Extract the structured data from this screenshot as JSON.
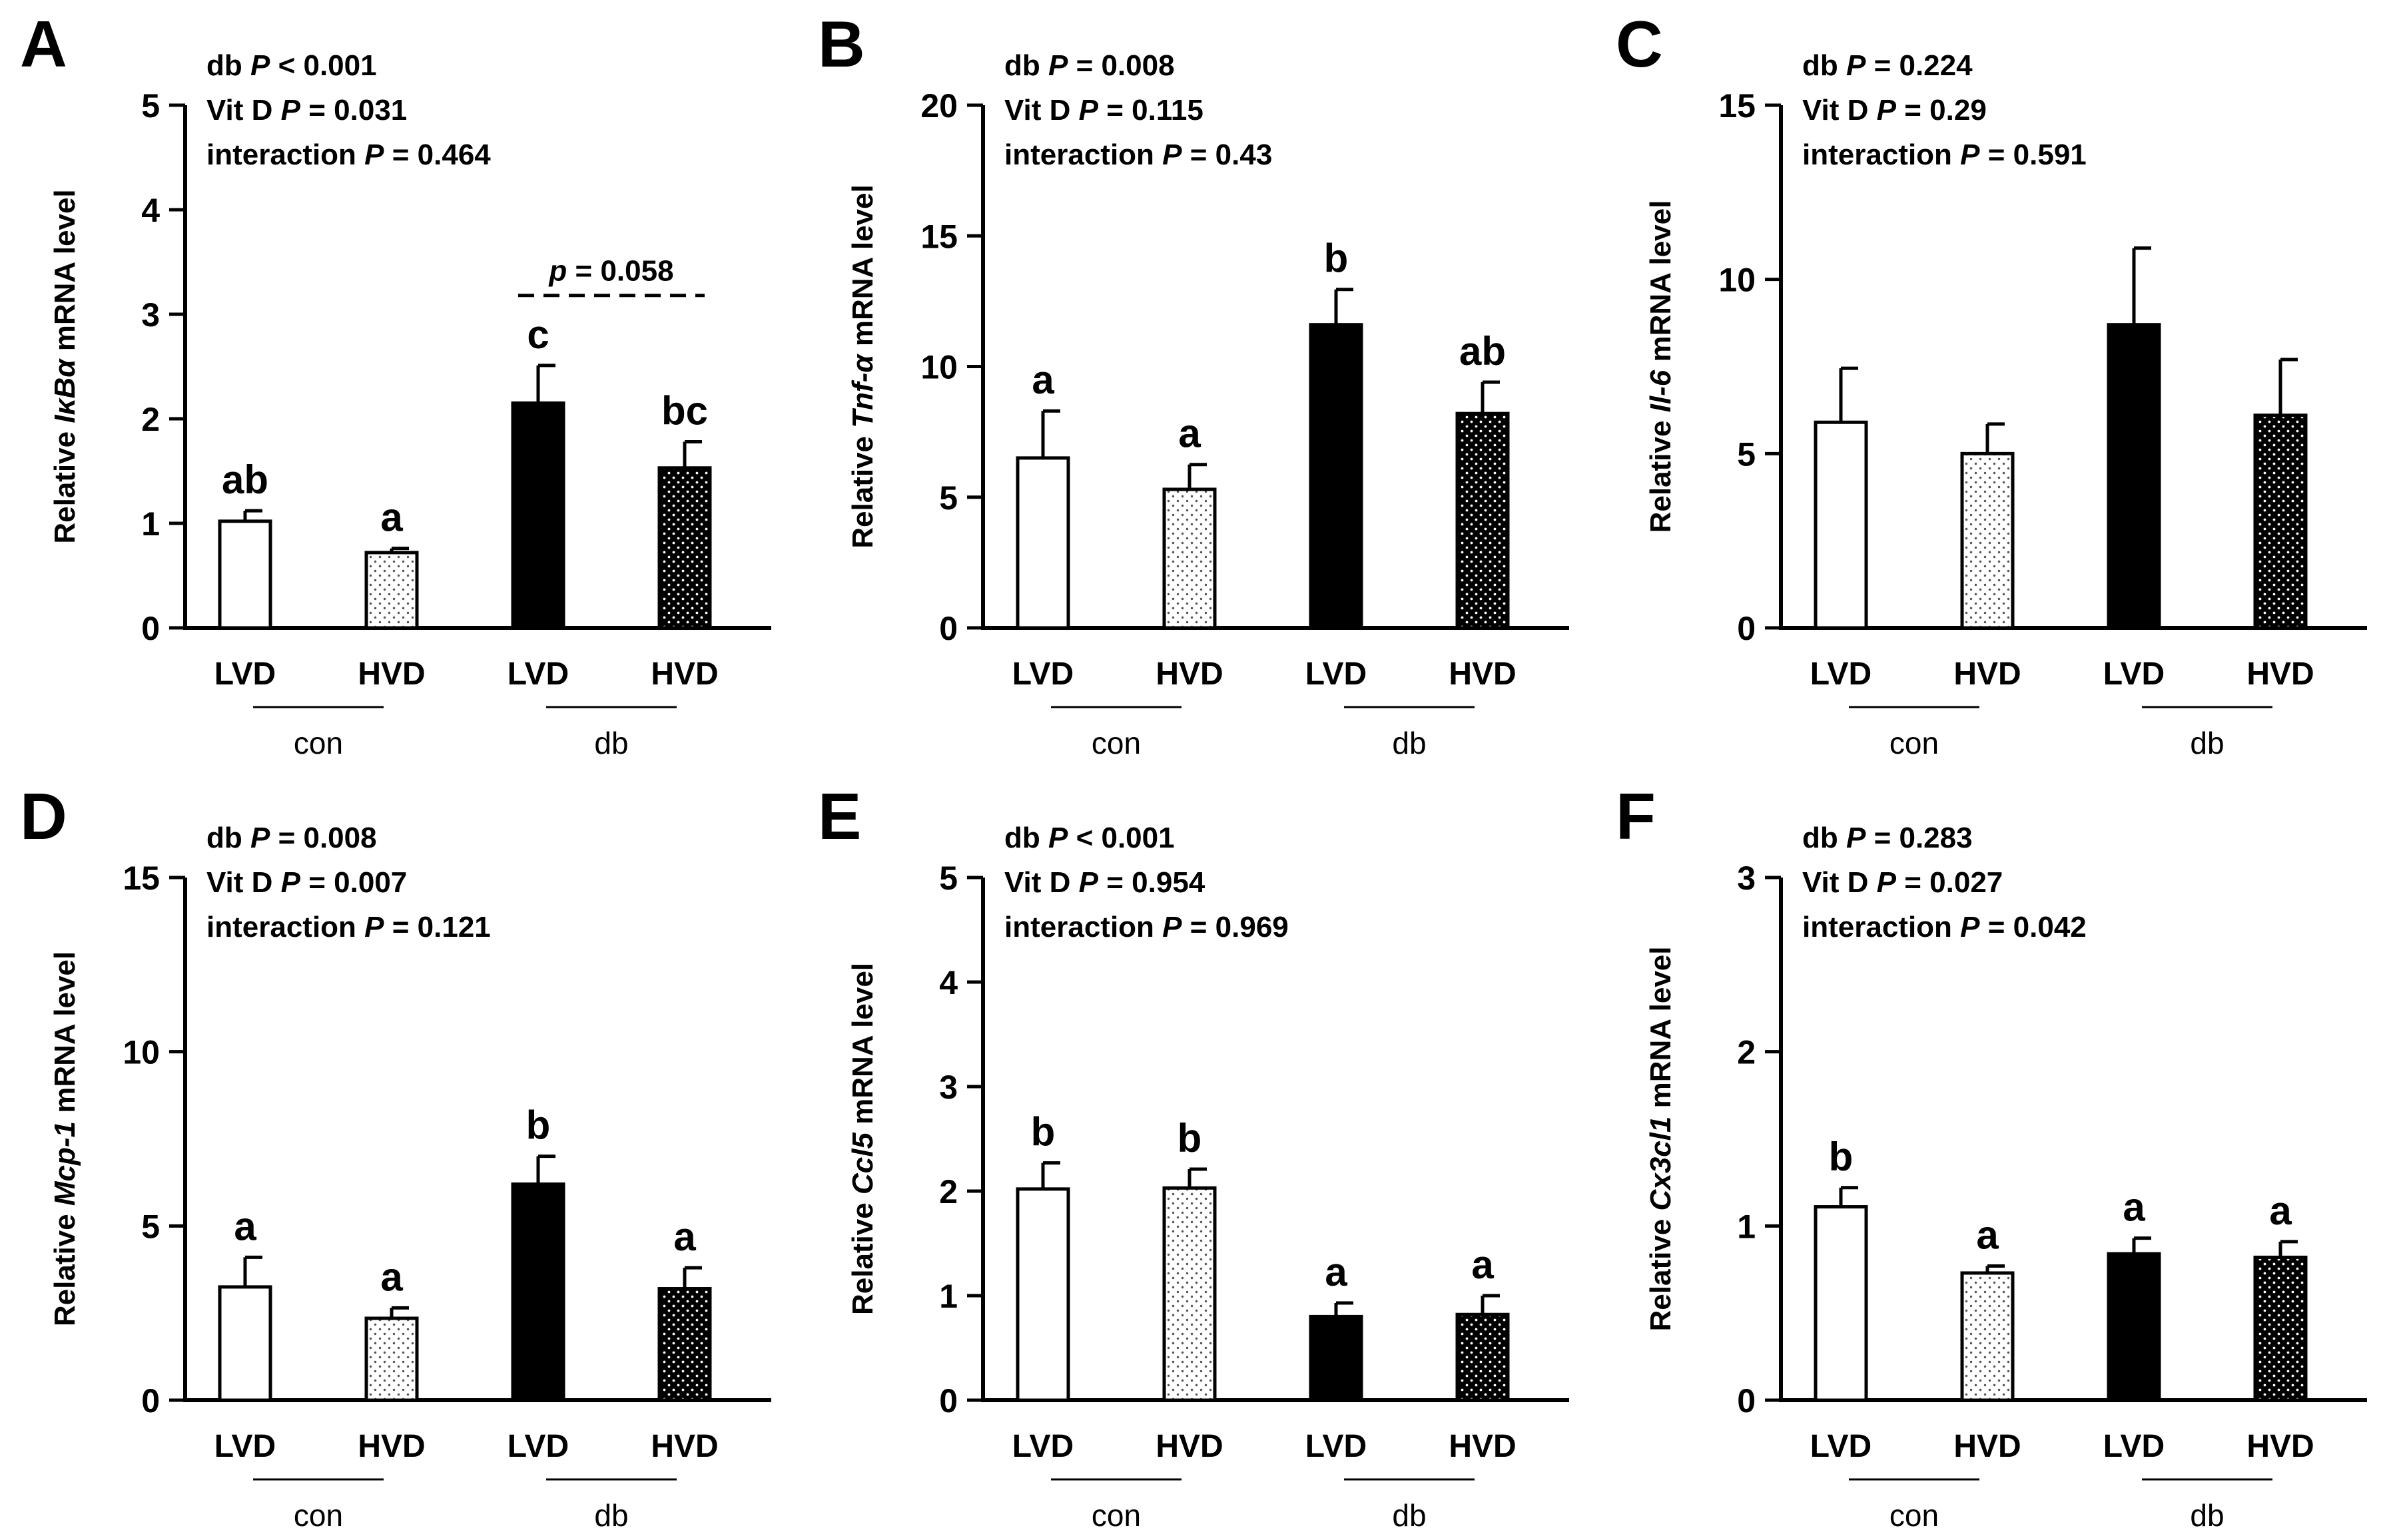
{
  "chart_data": [
    {
      "type": "bar",
      "panel": "A",
      "stats": [
        {
          "label": "db",
          "p": "P",
          "rest": " < 0.001"
        },
        {
          "label": "Vit D",
          "p": "P",
          "rest": " = 0.031"
        },
        {
          "label": "interaction",
          "p": "P",
          "rest": " = 0.464"
        }
      ],
      "ylabel": {
        "prefix": "Relative ",
        "gene": "IκBα",
        "suffix": " mRNA level"
      },
      "ylim": [
        0,
        5
      ],
      "yticks": [
        "0",
        "1",
        "2",
        "3",
        "4",
        "5"
      ],
      "categories": [
        "LVD",
        "HVD",
        "LVD",
        "HVD"
      ],
      "groups": [
        "con",
        "db"
      ],
      "values": [
        1.02,
        0.72,
        2.15,
        1.53
      ],
      "errors": [
        0.1,
        0.04,
        0.36,
        0.25
      ],
      "letters": [
        "ab",
        "a",
        "c",
        "bc"
      ],
      "comparison": {
        "text": "p = 0.058",
        "between": [
          2,
          3
        ],
        "y": 3.18
      }
    },
    {
      "type": "bar",
      "panel": "B",
      "stats": [
        {
          "label": "db",
          "p": "P",
          "rest": " = 0.008"
        },
        {
          "label": "Vit D",
          "p": "P",
          "rest": " = 0.115"
        },
        {
          "label": "interaction",
          "p": "P",
          "rest": " = 0.43"
        }
      ],
      "ylabel": {
        "prefix": "Relative ",
        "gene": "Tnf-α",
        "suffix": " mRNA level"
      },
      "ylim": [
        0,
        20
      ],
      "yticks": [
        "0",
        "5",
        "10",
        "15",
        "20"
      ],
      "categories": [
        "LVD",
        "HVD",
        "LVD",
        "HVD"
      ],
      "groups": [
        "con",
        "db"
      ],
      "values": [
        6.5,
        5.3,
        11.6,
        8.2
      ],
      "errors": [
        1.8,
        0.95,
        1.35,
        1.2
      ],
      "letters": [
        "a",
        "a",
        "b",
        "ab"
      ]
    },
    {
      "type": "bar",
      "panel": "C",
      "stats": [
        {
          "label": "db",
          "p": "P",
          "rest": " = 0.224"
        },
        {
          "label": "Vit D",
          "p": "P",
          "rest": " = 0.29"
        },
        {
          "label": "interaction",
          "p": "P",
          "rest": " = 0.591"
        }
      ],
      "ylabel": {
        "prefix": "Relative ",
        "gene": "Il-6",
        "suffix": " mRNA level"
      },
      "ylim": [
        0,
        15
      ],
      "yticks": [
        "0",
        "5",
        "10",
        "15"
      ],
      "categories": [
        "LVD",
        "HVD",
        "LVD",
        "HVD"
      ],
      "groups": [
        "con",
        "db"
      ],
      "values": [
        5.9,
        5.0,
        8.7,
        6.1
      ],
      "errors": [
        1.55,
        0.85,
        2.2,
        1.6
      ],
      "letters": [
        "",
        "",
        "",
        ""
      ]
    },
    {
      "type": "bar",
      "panel": "D",
      "stats": [
        {
          "label": "db",
          "p": "P",
          "rest": " = 0.008"
        },
        {
          "label": "Vit D",
          "p": "P",
          "rest": " = 0.007"
        },
        {
          "label": "interaction",
          "p": "P",
          "rest": " = 0.121"
        }
      ],
      "ylabel": {
        "prefix": "Relative ",
        "gene": "Mcp-1",
        "suffix": " mRNA level"
      },
      "ylim": [
        0,
        15
      ],
      "yticks": [
        "0",
        "5",
        "10",
        "15"
      ],
      "categories": [
        "LVD",
        "HVD",
        "LVD",
        "HVD"
      ],
      "groups": [
        "con",
        "db"
      ],
      "values": [
        3.25,
        2.35,
        6.2,
        3.2
      ],
      "errors": [
        0.85,
        0.3,
        0.8,
        0.6
      ],
      "letters": [
        "a",
        "a",
        "b",
        "a"
      ]
    },
    {
      "type": "bar",
      "panel": "E",
      "stats": [
        {
          "label": "db",
          "p": "P",
          "rest": " < 0.001"
        },
        {
          "label": "Vit D",
          "p": "P",
          "rest": " = 0.954"
        },
        {
          "label": "interaction",
          "p": "P",
          "rest": " = 0.969"
        }
      ],
      "ylabel": {
        "prefix": "Relative ",
        "gene": "Ccl5",
        "suffix": " mRNA level"
      },
      "ylim": [
        0,
        5
      ],
      "yticks": [
        "0",
        "1",
        "2",
        "3",
        "4",
        "5"
      ],
      "categories": [
        "LVD",
        "HVD",
        "LVD",
        "HVD"
      ],
      "groups": [
        "con",
        "db"
      ],
      "values": [
        2.02,
        2.03,
        0.8,
        0.82
      ],
      "errors": [
        0.25,
        0.18,
        0.13,
        0.18
      ],
      "letters": [
        "b",
        "b",
        "a",
        "a"
      ]
    },
    {
      "type": "bar",
      "panel": "F",
      "stats": [
        {
          "label": "db",
          "p": "P",
          "rest": " = 0.283"
        },
        {
          "label": "Vit D",
          "p": "P",
          "rest": " = 0.027"
        },
        {
          "label": "interaction",
          "p": "P",
          "rest": " = 0.042"
        }
      ],
      "ylabel": {
        "prefix": "Relative ",
        "gene": "Cx3cl1",
        "suffix": " mRNA level"
      },
      "ylim": [
        0,
        3
      ],
      "yticks": [
        "0",
        "1",
        "2",
        "3"
      ],
      "categories": [
        "LVD",
        "HVD",
        "LVD",
        "HVD"
      ],
      "groups": [
        "con",
        "db"
      ],
      "values": [
        1.11,
        0.73,
        0.84,
        0.82
      ],
      "errors": [
        0.11,
        0.04,
        0.09,
        0.09
      ],
      "letters": [
        "b",
        "a",
        "a",
        "a"
      ]
    }
  ],
  "bar_styles": [
    "open",
    "light-dotted",
    "solid-black",
    "dark-dotted"
  ]
}
